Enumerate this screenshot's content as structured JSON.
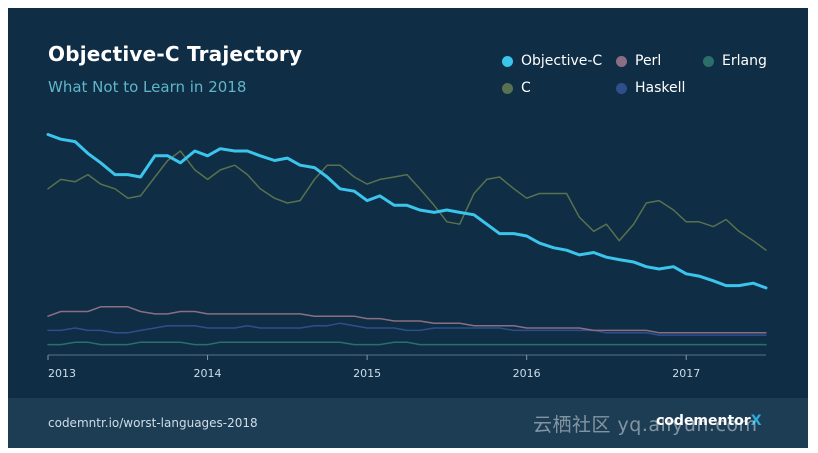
{
  "header": {
    "title": "Objective-C Trajectory",
    "subtitle": "What Not to Learn in 2018"
  },
  "footer": {
    "url": "codemntr.io/worst-languages-2018",
    "brand": "codementor",
    "brand_mark": "X"
  },
  "watermark": "云栖社区 yq.aliyun.com",
  "chart_data": {
    "type": "line",
    "title": "Objective-C Trajectory",
    "subtitle": "What Not to Learn in 2018",
    "xlabel": "",
    "ylabel": "",
    "xlim": [
      2013.0,
      2017.5
    ],
    "ylim": [
      0,
      100
    ],
    "grid": false,
    "legend_position": "top-right",
    "x_ticks": [
      {
        "value": 2013,
        "label": "2013"
      },
      {
        "value": 2014,
        "label": "2014"
      },
      {
        "value": 2015,
        "label": "2015"
      },
      {
        "value": 2016,
        "label": "2016"
      },
      {
        "value": 2017,
        "label": "2017"
      }
    ],
    "series": [
      {
        "name": "Objective-C",
        "color": "#3cc5ec",
        "width": 3,
        "x": [
          2013.0,
          2013.08,
          2013.17,
          2013.25,
          2013.33,
          2013.42,
          2013.5,
          2013.58,
          2013.67,
          2013.75,
          2013.83,
          2013.92,
          2014.0,
          2014.08,
          2014.17,
          2014.25,
          2014.33,
          2014.42,
          2014.5,
          2014.58,
          2014.67,
          2014.75,
          2014.83,
          2014.92,
          2015.0,
          2015.08,
          2015.17,
          2015.25,
          2015.33,
          2015.42,
          2015.5,
          2015.58,
          2015.67,
          2015.75,
          2015.83,
          2015.92,
          2016.0,
          2016.08,
          2016.17,
          2016.25,
          2016.33,
          2016.42,
          2016.5,
          2016.58,
          2016.67,
          2016.75,
          2016.83,
          2016.92,
          2017.0,
          2017.08,
          2017.17,
          2017.25,
          2017.33,
          2017.42,
          2017.5
        ],
        "values": [
          93,
          91,
          90,
          85,
          81,
          76,
          76,
          75,
          84,
          84,
          81,
          86,
          84,
          87,
          86,
          86,
          84,
          82,
          83,
          80,
          79,
          75,
          70,
          69,
          65,
          67,
          63,
          63,
          61,
          60,
          61,
          60,
          59,
          55,
          51,
          51,
          50,
          47,
          45,
          44,
          42,
          43,
          41,
          40,
          39,
          37,
          36,
          37,
          34,
          33,
          31,
          29,
          29,
          30,
          28
        ]
      },
      {
        "name": "C",
        "color": "#58714f",
        "width": 1.5,
        "x": [
          2013.0,
          2013.08,
          2013.17,
          2013.25,
          2013.33,
          2013.42,
          2013.5,
          2013.58,
          2013.67,
          2013.75,
          2013.83,
          2013.92,
          2014.0,
          2014.08,
          2014.17,
          2014.25,
          2014.33,
          2014.42,
          2014.5,
          2014.58,
          2014.67,
          2014.75,
          2014.83,
          2014.92,
          2015.0,
          2015.08,
          2015.17,
          2015.25,
          2015.33,
          2015.42,
          2015.5,
          2015.58,
          2015.67,
          2015.75,
          2015.83,
          2015.92,
          2016.0,
          2016.08,
          2016.17,
          2016.25,
          2016.33,
          2016.42,
          2016.5,
          2016.58,
          2016.67,
          2016.75,
          2016.83,
          2016.92,
          2017.0,
          2017.08,
          2017.17,
          2017.25,
          2017.33,
          2017.42,
          2017.5
        ],
        "values": [
          70,
          74,
          73,
          76,
          72,
          70,
          66,
          67,
          75,
          82,
          86,
          78,
          74,
          78,
          80,
          76,
          70,
          66,
          64,
          65,
          74,
          80,
          80,
          75,
          72,
          74,
          75,
          76,
          70,
          63,
          56,
          55,
          68,
          74,
          75,
          70,
          66,
          68,
          68,
          68,
          58,
          52,
          55,
          48,
          55,
          64,
          65,
          61,
          56,
          56,
          54,
          57,
          52,
          48,
          44
        ]
      },
      {
        "name": "Perl",
        "color": "#8a6f82",
        "width": 1.5,
        "x": [
          2013.0,
          2013.08,
          2013.17,
          2013.25,
          2013.33,
          2013.42,
          2013.5,
          2013.58,
          2013.67,
          2013.75,
          2013.83,
          2013.92,
          2014.0,
          2014.08,
          2014.17,
          2014.25,
          2014.33,
          2014.42,
          2014.5,
          2014.58,
          2014.67,
          2014.75,
          2014.83,
          2014.92,
          2015.0,
          2015.08,
          2015.17,
          2015.25,
          2015.33,
          2015.42,
          2015.5,
          2015.58,
          2015.67,
          2015.75,
          2015.83,
          2015.92,
          2016.0,
          2016.08,
          2016.17,
          2016.25,
          2016.33,
          2016.42,
          2016.5,
          2016.58,
          2016.67,
          2016.75,
          2016.83,
          2016.92,
          2017.0,
          2017.08,
          2017.17,
          2017.25,
          2017.33,
          2017.42,
          2017.5
        ],
        "values": [
          16,
          18,
          18,
          18,
          20,
          20,
          20,
          18,
          17,
          17,
          18,
          18,
          17,
          17,
          17,
          17,
          17,
          17,
          17,
          17,
          16,
          16,
          16,
          16,
          15,
          15,
          14,
          14,
          14,
          13,
          13,
          13,
          12,
          12,
          12,
          12,
          11,
          11,
          11,
          11,
          11,
          10,
          10,
          10,
          10,
          10,
          9,
          9,
          9,
          9,
          9,
          9,
          9,
          9,
          9
        ]
      },
      {
        "name": "Haskell",
        "color": "#2f4e8c",
        "width": 1.5,
        "x": [
          2013.0,
          2013.08,
          2013.17,
          2013.25,
          2013.33,
          2013.42,
          2013.5,
          2013.58,
          2013.67,
          2013.75,
          2013.83,
          2013.92,
          2014.0,
          2014.08,
          2014.17,
          2014.25,
          2014.33,
          2014.42,
          2014.5,
          2014.58,
          2014.67,
          2014.75,
          2014.83,
          2014.92,
          2015.0,
          2015.08,
          2015.17,
          2015.25,
          2015.33,
          2015.42,
          2015.5,
          2015.58,
          2015.67,
          2015.75,
          2015.83,
          2015.92,
          2016.0,
          2016.08,
          2016.17,
          2016.25,
          2016.33,
          2016.42,
          2016.5,
          2016.58,
          2016.67,
          2016.75,
          2016.83,
          2016.92,
          2017.0,
          2017.08,
          2017.17,
          2017.25,
          2017.33,
          2017.42,
          2017.5
        ],
        "values": [
          10,
          10,
          11,
          10,
          10,
          9,
          9,
          10,
          11,
          12,
          12,
          12,
          11,
          11,
          11,
          12,
          11,
          11,
          11,
          11,
          12,
          12,
          13,
          12,
          11,
          11,
          11,
          10,
          10,
          11,
          11,
          11,
          11,
          11,
          11,
          10,
          10,
          10,
          10,
          10,
          10,
          10,
          9,
          9,
          9,
          9,
          8,
          8,
          8,
          8,
          8,
          8,
          8,
          8,
          8
        ]
      },
      {
        "name": "Erlang",
        "color": "#2b6f6a",
        "width": 1.5,
        "x": [
          2013.0,
          2013.08,
          2013.17,
          2013.25,
          2013.33,
          2013.42,
          2013.5,
          2013.58,
          2013.67,
          2013.75,
          2013.83,
          2013.92,
          2014.0,
          2014.08,
          2014.17,
          2014.25,
          2014.33,
          2014.42,
          2014.5,
          2014.58,
          2014.67,
          2014.75,
          2014.83,
          2014.92,
          2015.0,
          2015.08,
          2015.17,
          2015.25,
          2015.33,
          2015.42,
          2015.5,
          2015.58,
          2015.67,
          2015.75,
          2015.83,
          2015.92,
          2016.0,
          2016.08,
          2016.17,
          2016.25,
          2016.33,
          2016.42,
          2016.5,
          2016.58,
          2016.67,
          2016.75,
          2016.83,
          2016.92,
          2017.0,
          2017.08,
          2017.17,
          2017.25,
          2017.33,
          2017.42,
          2017.5
        ],
        "values": [
          4,
          4,
          5,
          5,
          4,
          4,
          4,
          5,
          5,
          5,
          5,
          4,
          4,
          5,
          5,
          5,
          5,
          5,
          5,
          5,
          5,
          5,
          5,
          4,
          4,
          4,
          5,
          5,
          4,
          4,
          4,
          4,
          4,
          4,
          4,
          4,
          4,
          4,
          4,
          4,
          4,
          4,
          4,
          4,
          4,
          4,
          4,
          4,
          4,
          4,
          4,
          4,
          4,
          4,
          4
        ]
      }
    ],
    "legend": [
      {
        "name": "Objective-C",
        "color": "#3cc5ec"
      },
      {
        "name": "Perl",
        "color": "#8a6f82"
      },
      {
        "name": "Erlang",
        "color": "#2b6f6a"
      },
      {
        "name": "C",
        "color": "#58714f"
      },
      {
        "name": "Haskell",
        "color": "#2f4e8c"
      }
    ]
  }
}
